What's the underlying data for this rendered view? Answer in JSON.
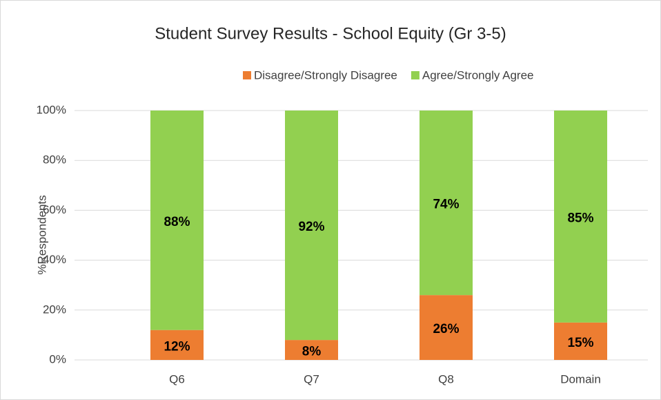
{
  "chart_data": {
    "type": "stacked_bar",
    "title": "Student Survey Results - School Equity (Gr 3-5)",
    "y_label": "%Respondents",
    "categories": [
      "Q6",
      "Q7",
      "Q8",
      "Domain"
    ],
    "series": [
      {
        "name": "Disagree/Strongly Disagree",
        "color": "#ed7d31",
        "values": [
          12,
          8,
          26,
          15
        ],
        "value_labels": [
          "12%",
          "8%",
          "26%",
          "15%"
        ]
      },
      {
        "name": "Agree/Strongly Agree",
        "color": "#92d050",
        "values": [
          88,
          92,
          74,
          85
        ],
        "value_labels": [
          "88%",
          "92%",
          "74%",
          "85%"
        ]
      }
    ],
    "ylim": [
      0,
      100
    ],
    "yticks": [
      {
        "value": 0,
        "label": "0%"
      },
      {
        "value": 20,
        "label": "20%"
      },
      {
        "value": 40,
        "label": "40%"
      },
      {
        "value": 60,
        "label": "60%"
      },
      {
        "value": 80,
        "label": "80%"
      },
      {
        "value": 100,
        "label": "100%"
      }
    ],
    "grid": true,
    "legend": "top"
  }
}
